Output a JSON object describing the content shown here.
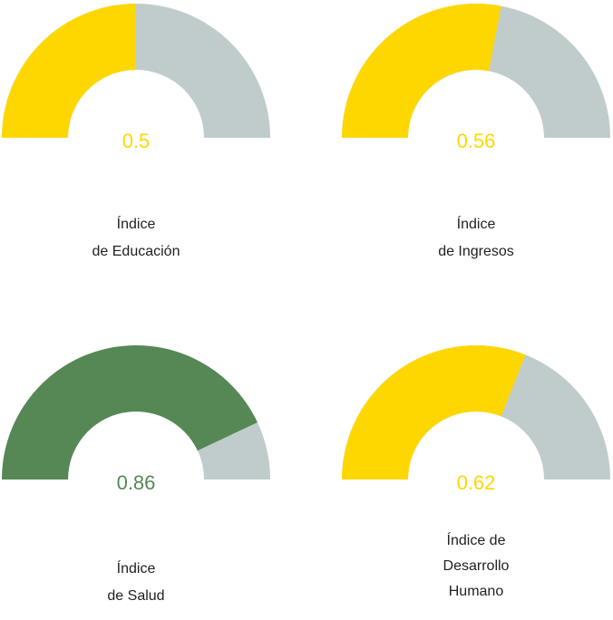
{
  "chart_data": [
    {
      "type": "gauge",
      "title": "Índice\nde Educación",
      "value": 0.5,
      "color": "#ffd700",
      "track_color": "#c0cccc",
      "ylim": [
        0,
        1
      ]
    },
    {
      "type": "gauge",
      "title": "Índice\nde Ingresos",
      "value": 0.56,
      "color": "#ffd700",
      "track_color": "#c0cccc",
      "ylim": [
        0,
        1
      ]
    },
    {
      "type": "gauge",
      "title": "Índice\nde Salud",
      "value": 0.86,
      "color": "#558855",
      "track_color": "#c0cccc",
      "ylim": [
        0,
        1
      ]
    },
    {
      "type": "gauge",
      "title": "Índice de\nDesarrollo\nHumano",
      "value": 0.62,
      "color": "#ffd700",
      "track_color": "#c0cccc",
      "ylim": [
        0,
        1
      ]
    }
  ]
}
